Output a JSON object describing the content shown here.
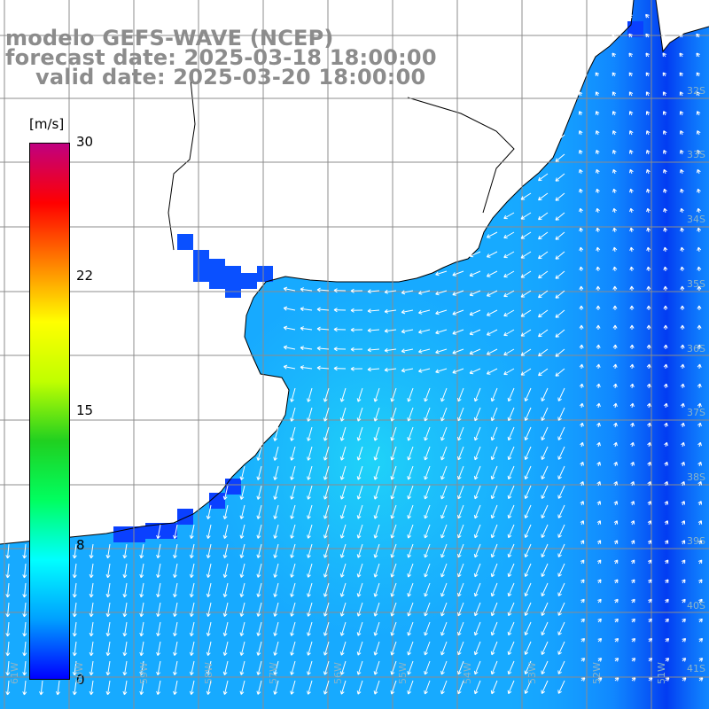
{
  "title": {
    "model": "modelo GEFS-WAVE (NCEP)",
    "forecast": "forecast date: 2025-03-18 18:00:00",
    "valid": "valid date: 2025-03-20 18:00:00"
  },
  "colorbar": {
    "unit": "[m/s]",
    "ticks": [
      "30",
      "22",
      "15",
      "8",
      "0"
    ],
    "min": 0,
    "max": 30,
    "stops": [
      "#0000ff",
      "#00a0ff",
      "#00ffff",
      "#00ff60",
      "#20d020",
      "#c0ff00",
      "#ffff00",
      "#ff8000",
      "#ff0000",
      "#c00080"
    ]
  },
  "grid": {
    "lat_labels": [
      "32S",
      "33S",
      "34S",
      "35S",
      "36S",
      "37S",
      "38S",
      "39S",
      "40S",
      "41S"
    ],
    "lon_labels": [
      "61W",
      "60W",
      "59W",
      "58W",
      "57W",
      "56W",
      "55W",
      "54W",
      "53W",
      "52W",
      "51W"
    ]
  },
  "colors": {
    "land": "#ffffff",
    "coast": "#000000",
    "grid": "#8c8c8c",
    "arrow": "#ffffff"
  }
}
